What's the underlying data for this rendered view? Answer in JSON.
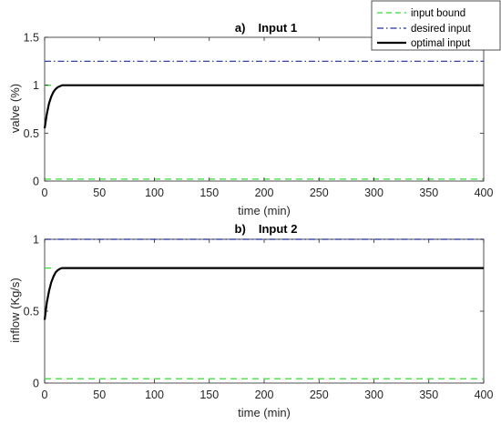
{
  "colors": {
    "input_bound": "#33dd33",
    "desired_input": "#1f2fa0",
    "optimal_input": "#000000",
    "axes": "#262626"
  },
  "legend": {
    "placement": "top-right",
    "entries": [
      {
        "label": "input bound",
        "style": "dashed",
        "color": "#33dd33"
      },
      {
        "label": "desired input",
        "style": "dash-dot",
        "color": "#1f2fa0"
      },
      {
        "label": "optimal input",
        "style": "solid",
        "color": "#000000"
      }
    ]
  },
  "chart_data": [
    {
      "type": "line",
      "title_prefix": "a)",
      "title": "Input 1",
      "xlabel": "time (min)",
      "ylabel": "valve (%)",
      "xlim": [
        0,
        400
      ],
      "ylim": [
        0,
        1.5
      ],
      "xticks": [
        0,
        50,
        100,
        150,
        200,
        250,
        300,
        350,
        400
      ],
      "yticks": [
        0,
        0.5,
        1,
        1.5
      ],
      "ytick_labels": [
        "0",
        "0.5",
        "1",
        "1.5"
      ],
      "grid": false,
      "series": [
        {
          "name": "input bound",
          "style": "dashed",
          "x": [
            0,
            400
          ],
          "y": [
            0.02,
            0.02
          ]
        },
        {
          "name": "input bound",
          "style": "dashed",
          "x": [
            0,
            10
          ],
          "y": [
            1.0,
            1.0
          ]
        },
        {
          "name": "desired input",
          "style": "dash-dot",
          "x": [
            0,
            400
          ],
          "y": [
            1.25,
            1.25
          ]
        },
        {
          "name": "optimal input",
          "style": "solid",
          "x": [
            0,
            2,
            4,
            6,
            8,
            10,
            12,
            14,
            16,
            18,
            20,
            25,
            400
          ],
          "y": [
            0.55,
            0.7,
            0.81,
            0.88,
            0.93,
            0.96,
            0.98,
            0.99,
            1.0,
            1.0,
            1.0,
            1.0,
            1.0
          ]
        }
      ]
    },
    {
      "type": "line",
      "title_prefix": "b)",
      "title": "Input 2",
      "xlabel": "time (min)",
      "ylabel": "inflow (Kg/s)",
      "xlim": [
        0,
        400
      ],
      "ylim": [
        0,
        1
      ],
      "xticks": [
        0,
        50,
        100,
        150,
        200,
        250,
        300,
        350,
        400
      ],
      "yticks": [
        0,
        0.5,
        1
      ],
      "ytick_labels": [
        "0",
        "0.5",
        "1"
      ],
      "grid": false,
      "series": [
        {
          "name": "input bound",
          "style": "dashed",
          "x": [
            0,
            400
          ],
          "y": [
            0.03,
            0.03
          ]
        },
        {
          "name": "input bound",
          "style": "dashed",
          "x": [
            0,
            10
          ],
          "y": [
            0.8,
            0.8
          ]
        },
        {
          "name": "desired input",
          "style": "dash-dot",
          "x": [
            0,
            400
          ],
          "y": [
            1.0,
            1.0
          ]
        },
        {
          "name": "optimal input",
          "style": "solid",
          "x": [
            0,
            2,
            4,
            6,
            8,
            10,
            12,
            14,
            16,
            18,
            20,
            25,
            400
          ],
          "y": [
            0.44,
            0.56,
            0.64,
            0.7,
            0.74,
            0.77,
            0.785,
            0.795,
            0.8,
            0.8,
            0.8,
            0.8,
            0.8
          ]
        }
      ]
    }
  ]
}
